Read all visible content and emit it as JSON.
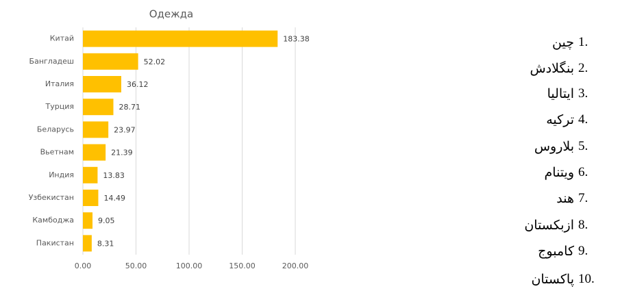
{
  "chart_data": {
    "type": "bar",
    "orientation": "horizontal",
    "title": "Одежда",
    "categories": [
      "Китай",
      "Бангладеш",
      "Италия",
      "Турция",
      "Беларусь",
      "Вьетнам",
      "Индия",
      "Узбекистан",
      "Камбоджа",
      "Пакистан"
    ],
    "values": [
      183.38,
      52.02,
      36.12,
      28.71,
      23.97,
      21.39,
      13.83,
      14.49,
      9.05,
      8.31
    ],
    "color": "#ffc000",
    "xlim": [
      0,
      200
    ],
    "xticks": [
      {
        "value": 0,
        "label": "0.00"
      },
      {
        "value": 50,
        "label": "50.00"
      },
      {
        "value": 100,
        "label": "100.00"
      },
      {
        "value": 150,
        "label": "150.00"
      },
      {
        "value": 200,
        "label": "200.00"
      }
    ],
    "grid": true
  },
  "list": [
    {
      "number": "1.",
      "label": "چین"
    },
    {
      "number": "2.",
      "label": "بنگلادش"
    },
    {
      "number": "3.",
      "label": "ایتالیا"
    },
    {
      "number": "4.",
      "label": "ترکیه"
    },
    {
      "number": "5.",
      "label": "بلاروس"
    },
    {
      "number": "6.",
      "label": "ویتنام"
    },
    {
      "number": "7.",
      "label": "هند"
    },
    {
      "number": "8.",
      "label": "ازبکستان"
    },
    {
      "number": "9.",
      "label": "کامبوج"
    },
    {
      "number": "10.",
      "label": "پاکستان"
    }
  ]
}
